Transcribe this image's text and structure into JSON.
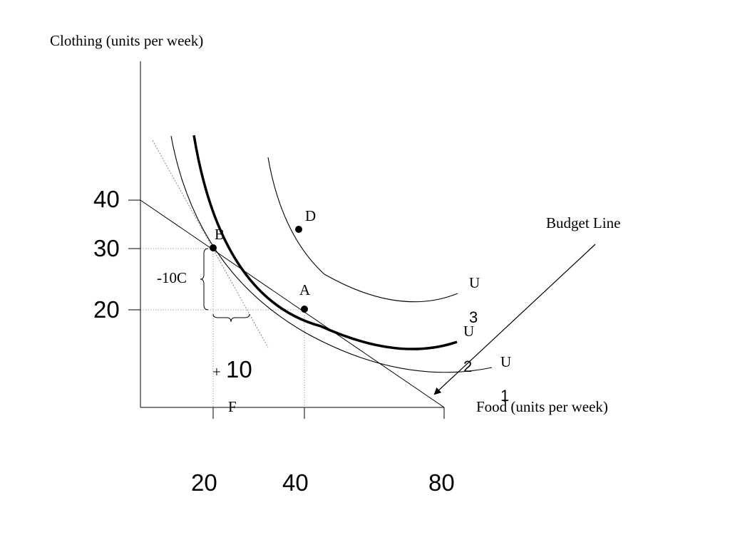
{
  "chart_data": {
    "type": "line",
    "ylabel": "Clothing (units per week)",
    "xlabel": "Food (units per week)",
    "x_ticks": [
      "20",
      "40",
      "80"
    ],
    "y_ticks": [
      "40",
      "30",
      "20"
    ],
    "budget_line": {
      "label": "Budget Line",
      "points": [
        [
          0,
          40
        ],
        [
          80,
          0
        ]
      ]
    },
    "points": [
      {
        "name": "B",
        "x": 20,
        "y": 30
      },
      {
        "name": "A",
        "x": 40,
        "y": 20
      },
      {
        "name": "D"
      }
    ],
    "indifference_curves": [
      {
        "label": "U",
        "subscript": "1"
      },
      {
        "label": "U",
        "subscript": "2"
      },
      {
        "label": "U",
        "subscript": "3"
      }
    ],
    "annotations": {
      "delta_c": "-10C",
      "delta_f_sign": "+",
      "delta_f_value": "10",
      "delta_f_unit": "F"
    }
  }
}
